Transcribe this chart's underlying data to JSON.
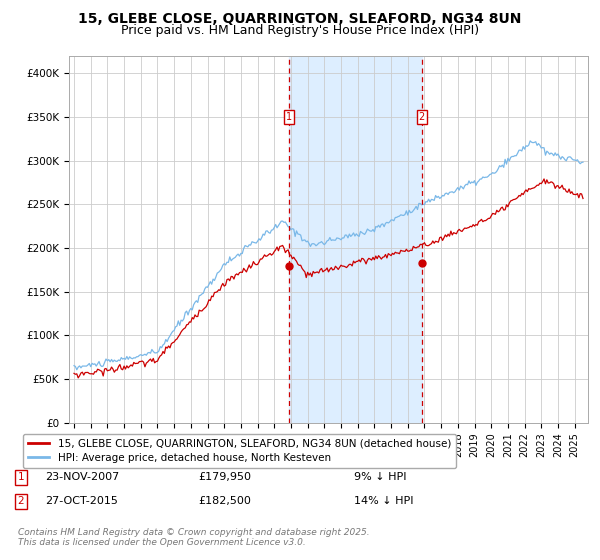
{
  "title": "15, GLEBE CLOSE, QUARRINGTON, SLEAFORD, NG34 8UN",
  "subtitle": "Price paid vs. HM Land Registry's House Price Index (HPI)",
  "ylabel_ticks": [
    "£0",
    "£50K",
    "£100K",
    "£150K",
    "£200K",
    "£250K",
    "£300K",
    "£350K",
    "£400K"
  ],
  "ytick_values": [
    0,
    50000,
    100000,
    150000,
    200000,
    250000,
    300000,
    350000,
    400000
  ],
  "ylim": [
    0,
    420000
  ],
  "xlim_start": 1994.7,
  "xlim_end": 2025.8,
  "purchase1_x": 2007.9,
  "purchase1_y": 179950,
  "purchase1_label": "1",
  "purchase1_date": "23-NOV-2007",
  "purchase1_price": "£179,950",
  "purchase1_pct": "9% ↓ HPI",
  "purchase2_x": 2015.83,
  "purchase2_y": 182500,
  "purchase2_label": "2",
  "purchase2_date": "27-OCT-2015",
  "purchase2_price": "£182,500",
  "purchase2_pct": "14% ↓ HPI",
  "hpi_color": "#7ab8e8",
  "price_color": "#cc0000",
  "shade_color": "#ddeeff",
  "vline_color": "#cc0000",
  "grid_color": "#cccccc",
  "legend_house": "15, GLEBE CLOSE, QUARRINGTON, SLEAFORD, NG34 8UN (detached house)",
  "legend_hpi": "HPI: Average price, detached house, North Kesteven",
  "footer": "Contains HM Land Registry data © Crown copyright and database right 2025.\nThis data is licensed under the Open Government Licence v3.0.",
  "title_fontsize": 10,
  "subtitle_fontsize": 9,
  "tick_fontsize": 7.5,
  "legend_fontsize": 7.5,
  "footer_fontsize": 6.5
}
